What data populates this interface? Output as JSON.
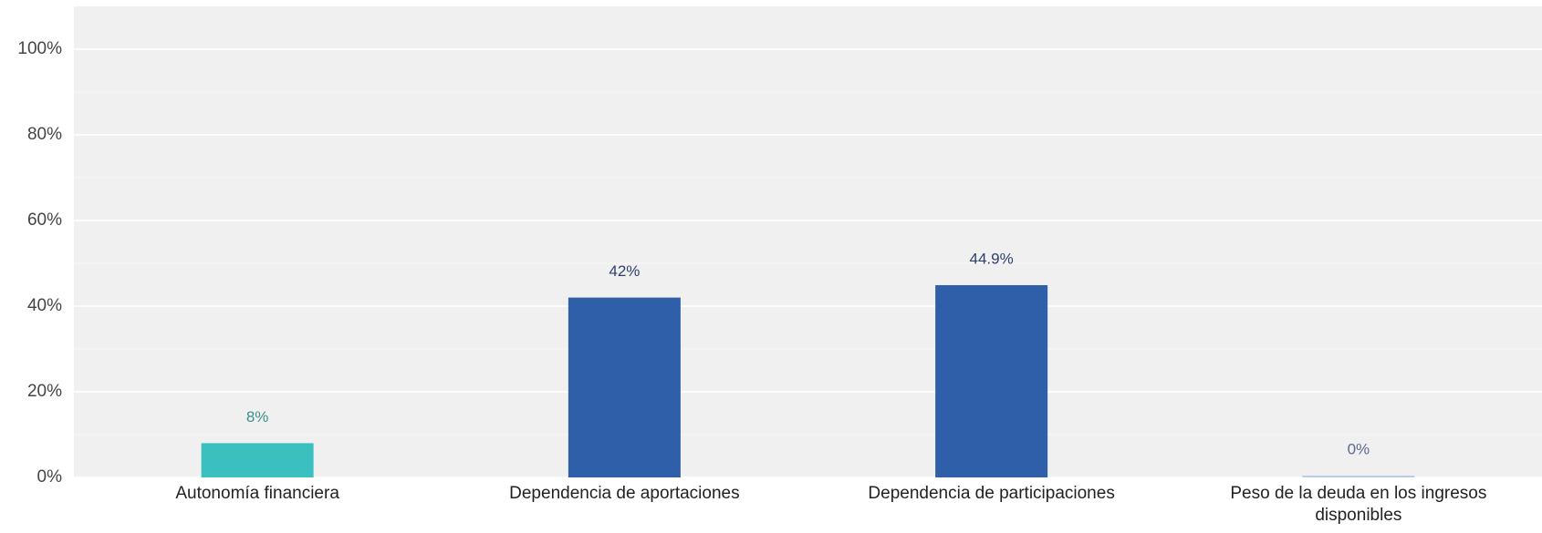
{
  "chart_data": {
    "type": "bar",
    "categories": [
      "Autonomía financiera",
      "Dependencia de aportaciones",
      "Dependencia de participaciones",
      "Peso de la deuda en los ingresos disponibles"
    ],
    "values": [
      8,
      42,
      44.9,
      0
    ],
    "value_labels": [
      "8%",
      "42%",
      "44.9%",
      "0%"
    ],
    "colors": [
      "#3bbfbf",
      "#2e5fa8",
      "#2e5fa8",
      "#b9cbe9"
    ],
    "label_colors": [
      "#3d8f8f",
      "#2f3f6e",
      "#2f3f6e",
      "#5a6a8e"
    ],
    "ylim": [
      0,
      110
    ],
    "yticks": [
      {
        "value": 0,
        "label": "0%"
      },
      {
        "value": 20,
        "label": "20%"
      },
      {
        "value": 40,
        "label": "40%"
      },
      {
        "value": 60,
        "label": "60%"
      },
      {
        "value": 80,
        "label": "80%"
      },
      {
        "value": 100,
        "label": "100%"
      }
    ],
    "grid": true
  }
}
